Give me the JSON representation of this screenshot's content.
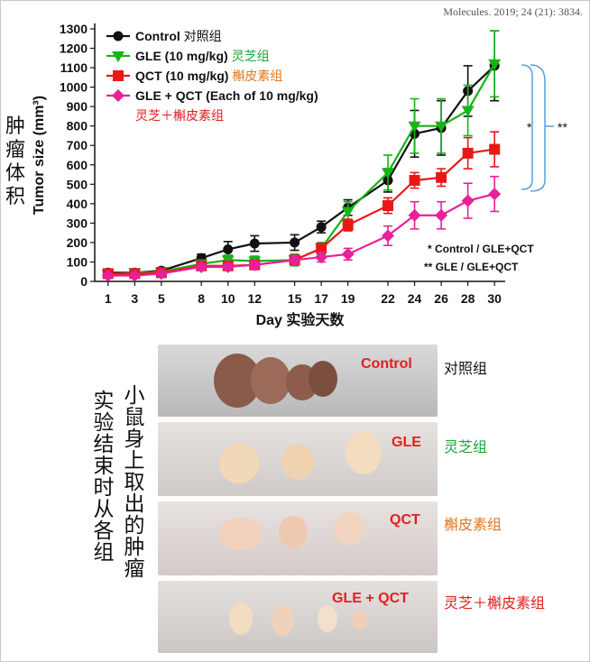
{
  "citation": "Molecules. 2019; 24 (21): 3834.",
  "chart_data": {
    "type": "line",
    "xlabel": "Day 实验天数",
    "ylabel": "Tumor size (mm³)",
    "ylabel_cn": "肿瘤体积",
    "x": [
      1,
      3,
      5,
      8,
      10,
      12,
      15,
      17,
      19,
      22,
      24,
      26,
      28,
      30
    ],
    "xticks": [
      1,
      3,
      5,
      8,
      10,
      12,
      15,
      17,
      19,
      22,
      24,
      26,
      28,
      30
    ],
    "ylim": [
      0,
      1300
    ],
    "yticks": [
      0,
      100,
      200,
      300,
      400,
      500,
      600,
      700,
      800,
      900,
      1000,
      1100,
      1200,
      1300
    ],
    "legend_position": "top-left",
    "series": [
      {
        "name": "Control",
        "label_en": "Control",
        "label_cn": "对照组",
        "color": "#111111",
        "marker": "circle",
        "values": [
          45,
          45,
          55,
          120,
          165,
          195,
          200,
          280,
          380,
          520,
          760,
          790,
          980,
          1110
        ],
        "errors": [
          15,
          10,
          15,
          20,
          40,
          40,
          40,
          30,
          40,
          60,
          120,
          140,
          130,
          180
        ]
      },
      {
        "name": "GLE (10 mg/kg)",
        "label_en": "GLE (10 mg/kg)",
        "label_cn": "灵芝组",
        "color": "#18b318",
        "marker": "triangle-down",
        "values": [
          35,
          45,
          50,
          90,
          110,
          105,
          110,
          170,
          360,
          560,
          800,
          800,
          880,
          1120
        ],
        "errors": [
          10,
          10,
          15,
          20,
          25,
          25,
          30,
          30,
          50,
          90,
          140,
          140,
          130,
          170
        ]
      },
      {
        "name": "QCT (10 mg/kg)",
        "label_en": "QCT (10 mg/kg)",
        "label_cn": "槲皮素组",
        "color": "#e81818",
        "marker": "square",
        "values": [
          40,
          40,
          45,
          80,
          80,
          85,
          110,
          170,
          290,
          390,
          520,
          535,
          660,
          680
        ],
        "errors": [
          10,
          10,
          10,
          15,
          15,
          20,
          20,
          25,
          30,
          40,
          40,
          45,
          80,
          90
        ]
      },
      {
        "name": "GLE + QCT (Each of 10 mg/kg)",
        "label_en": "GLE + QCT (Each of 10 mg/kg)",
        "label_cn": "灵芝＋槲皮素组",
        "color": "#e8209a",
        "marker": "diamond",
        "values": [
          30,
          30,
          40,
          75,
          75,
          85,
          110,
          125,
          140,
          235,
          340,
          340,
          415,
          450
        ],
        "errors": [
          10,
          10,
          10,
          15,
          15,
          20,
          20,
          25,
          30,
          50,
          70,
          70,
          90,
          90
        ]
      }
    ],
    "annotations": [
      {
        "text": "*",
        "meaning": "Control / GLE+QCT"
      },
      {
        "text": "**",
        "meaning": "GLE / GLE+QCT"
      }
    ],
    "significance_notes": [
      "*  Control / GLE+QCT",
      "** GLE / GLE+QCT"
    ]
  },
  "photos": {
    "vertical_caption_1": "实验结束时从各组",
    "vertical_caption_2": "小鼠身上取出的肿瘤",
    "rows": [
      {
        "label_en": "Control",
        "label_cn": "对照组",
        "cn_color": "#111111"
      },
      {
        "label_en": "GLE",
        "label_cn": "灵芝组",
        "cn_color": "#18a83a"
      },
      {
        "label_en": "QCT",
        "label_cn": "槲皮素组",
        "cn_color": "#e07820"
      },
      {
        "label_en": "GLE + QCT",
        "label_cn": "灵芝＋槲皮素组",
        "cn_color": "#e02020"
      }
    ]
  }
}
